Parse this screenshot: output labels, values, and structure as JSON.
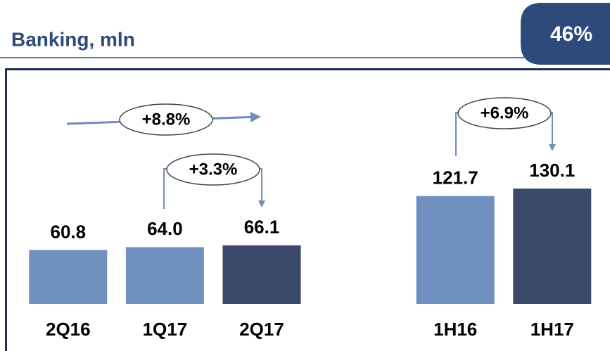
{
  "chart_data": {
    "type": "bar",
    "title": "Banking, mln",
    "badge": "46%",
    "categories": [
      "2Q16",
      "1Q17",
      "2Q17",
      null,
      "1H16",
      "1H17"
    ],
    "values": [
      60.8,
      64.0,
      66.1,
      null,
      121.7,
      130.1
    ],
    "value_labels": [
      "60.8",
      "64.0",
      "66.1",
      null,
      "121.7",
      "130.1"
    ],
    "colors": [
      "#7090c0",
      "#7090c0",
      "#3b4a6b",
      null,
      "#7090c0",
      "#3b4a6b"
    ],
    "annotations": [
      "+8.8%",
      "+3.3%",
      "+6.9%"
    ]
  }
}
